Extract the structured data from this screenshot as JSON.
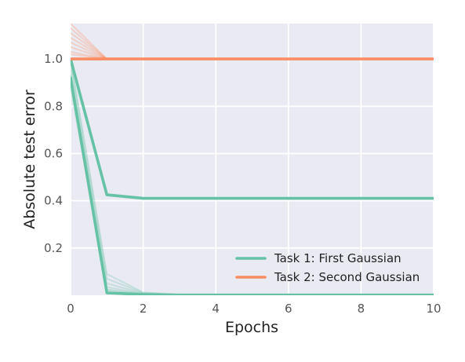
{
  "chart_data": {
    "type": "line",
    "title": "",
    "xlabel": "Epochs",
    "ylabel": "Absolute test error",
    "xlim": [
      0,
      10
    ],
    "ylim": [
      0.0,
      1.15
    ],
    "x_ticks": [
      0,
      2,
      4,
      6,
      8,
      10
    ],
    "y_ticks": [
      0.2,
      0.4,
      0.6,
      0.8,
      1.0
    ],
    "x_tick_labels": [
      "0",
      "2",
      "4",
      "6",
      "8",
      "10"
    ],
    "y_tick_labels": [
      "0.2",
      "0.4",
      "0.6",
      "0.8",
      "1.0"
    ],
    "grid": true,
    "legend_position": "lower-right",
    "legend": [
      {
        "label": "Task 1: First Gaussian",
        "color": "#66c2a5"
      },
      {
        "label": "Task 2: Second Gaussian",
        "color": "#fc8d62"
      }
    ],
    "x": [
      0,
      1,
      2,
      3,
      4,
      5,
      6,
      7,
      8,
      9,
      10
    ],
    "series": [
      {
        "group": "task1",
        "emphasis": "bold",
        "values": [
          1.0,
          0.425,
          0.41,
          0.41,
          0.41,
          0.41,
          0.41,
          0.41,
          0.41,
          0.41,
          0.41
        ]
      },
      {
        "group": "task1",
        "emphasis": "bold",
        "values": [
          0.92,
          0.01,
          0.003,
          0.001,
          0.001,
          0.001,
          0.001,
          0.001,
          0.001,
          0.001,
          0.001
        ]
      },
      {
        "group": "task1",
        "emphasis": "faint",
        "values": [
          1.0,
          0.09,
          0.012,
          0.003,
          0.001,
          0.001,
          0.001,
          0.001,
          0.001,
          0.001,
          0.001
        ]
      },
      {
        "group": "task1",
        "emphasis": "faint",
        "values": [
          0.98,
          0.07,
          0.01,
          0.002,
          0.001,
          0.001,
          0.001,
          0.001,
          0.001,
          0.001,
          0.001
        ]
      },
      {
        "group": "task1",
        "emphasis": "faint",
        "values": [
          0.95,
          0.05,
          0.008,
          0.002,
          0.001,
          0.001,
          0.001,
          0.001,
          0.001,
          0.001,
          0.001
        ]
      },
      {
        "group": "task1",
        "emphasis": "faint",
        "values": [
          0.9,
          0.035,
          0.006,
          0.001,
          0.001,
          0.001,
          0.001,
          0.001,
          0.001,
          0.001,
          0.001
        ]
      },
      {
        "group": "task1",
        "emphasis": "faint",
        "values": [
          0.88,
          0.025,
          0.005,
          0.001,
          0.001,
          0.001,
          0.001,
          0.001,
          0.001,
          0.001,
          0.001
        ]
      },
      {
        "group": "task1",
        "emphasis": "faint",
        "values": [
          0.93,
          0.02,
          0.004,
          0.001,
          0.001,
          0.001,
          0.001,
          0.001,
          0.001,
          0.001,
          0.001
        ]
      },
      {
        "group": "task2",
        "emphasis": "bold",
        "values": [
          1.0,
          1.0,
          1.0,
          1.0,
          1.0,
          1.0,
          1.0,
          1.0,
          1.0,
          1.0,
          1.0
        ]
      },
      {
        "group": "task2",
        "emphasis": "faint",
        "values": [
          1.15,
          1.0,
          1.0,
          1.0,
          1.0,
          1.0,
          1.0,
          1.0,
          1.0,
          1.0,
          1.0
        ]
      },
      {
        "group": "task2",
        "emphasis": "faint",
        "values": [
          1.13,
          1.0,
          1.0,
          1.0,
          1.0,
          1.0,
          1.0,
          1.0,
          1.0,
          1.0,
          1.0
        ]
      },
      {
        "group": "task2",
        "emphasis": "faint",
        "values": [
          1.11,
          1.0,
          1.0,
          1.0,
          1.0,
          1.0,
          1.0,
          1.0,
          1.0,
          1.0,
          1.0
        ]
      },
      {
        "group": "task2",
        "emphasis": "faint",
        "values": [
          1.09,
          1.0,
          1.0,
          1.0,
          1.0,
          1.0,
          1.0,
          1.0,
          1.0,
          1.0,
          1.0
        ]
      },
      {
        "group": "task2",
        "emphasis": "faint",
        "values": [
          1.07,
          1.0,
          1.0,
          1.0,
          1.0,
          1.0,
          1.0,
          1.0,
          1.0,
          1.0,
          1.0
        ]
      },
      {
        "group": "task2",
        "emphasis": "faint",
        "values": [
          1.05,
          1.0,
          1.0,
          1.0,
          1.0,
          1.0,
          1.0,
          1.0,
          1.0,
          1.0,
          1.0
        ]
      },
      {
        "group": "task2",
        "emphasis": "faint",
        "values": [
          1.03,
          1.0,
          1.0,
          1.0,
          1.0,
          1.0,
          1.0,
          1.0,
          1.0,
          1.0,
          1.0
        ]
      },
      {
        "group": "task2",
        "emphasis": "faint",
        "values": [
          1.02,
          1.0,
          1.0,
          1.0,
          1.0,
          1.0,
          1.0,
          1.0,
          1.0,
          1.0,
          1.0
        ]
      }
    ],
    "colors": {
      "background": "#eaeaf2",
      "grid": "#ffffff",
      "tick_label": "#555555",
      "axis_label": "#222222"
    }
  }
}
